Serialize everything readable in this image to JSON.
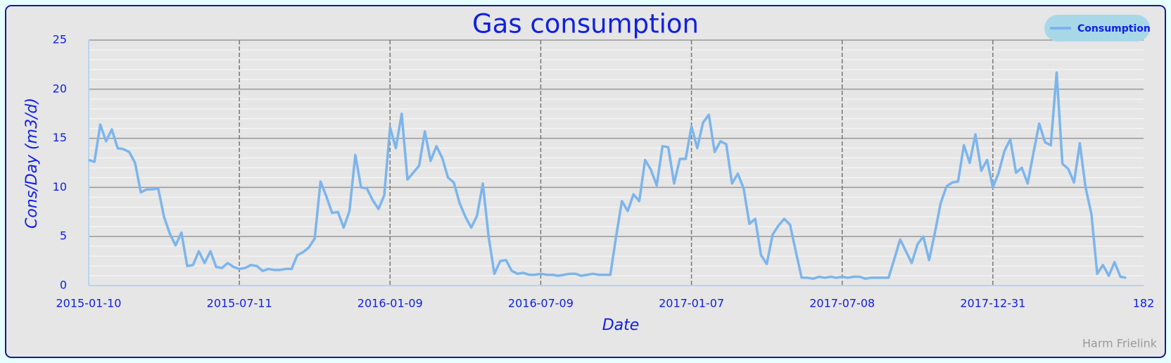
{
  "chart_data": {
    "type": "line",
    "title": "Gas consumption",
    "x_label": "Date",
    "y_label": "Cons/Day (m3/d)",
    "credit": "Harm Frielink",
    "categories": [
      "2015-01-10",
      null,
      null,
      null,
      null,
      null,
      null,
      null,
      null,
      null,
      null,
      null,
      null,
      null,
      null,
      null,
      null,
      null,
      null,
      null,
      null,
      null,
      null,
      null,
      null,
      null,
      "2015-07-11",
      null,
      null,
      null,
      null,
      null,
      null,
      null,
      null,
      null,
      null,
      null,
      null,
      null,
      null,
      null,
      null,
      null,
      null,
      null,
      null,
      null,
      null,
      null,
      null,
      null,
      "2016-01-09",
      null,
      null,
      null,
      null,
      null,
      null,
      null,
      null,
      null,
      null,
      null,
      null,
      null,
      null,
      null,
      null,
      null,
      null,
      null,
      null,
      null,
      null,
      null,
      null,
      null,
      "2016-07-09",
      null,
      null,
      null,
      null,
      null,
      null,
      null,
      null,
      null,
      null,
      null,
      null,
      null,
      null,
      null,
      null,
      null,
      null,
      null,
      null,
      null,
      null,
      null,
      null,
      null,
      "2017-01-07",
      null,
      null,
      null,
      null,
      null,
      null,
      null,
      null,
      null,
      null,
      null,
      null,
      null,
      null,
      null,
      null,
      null,
      null,
      null,
      null,
      null,
      null,
      null,
      null,
      null,
      "2017-07-08",
      null,
      null,
      null,
      null,
      null,
      null,
      null,
      null,
      null,
      null,
      null,
      null,
      null,
      null,
      null,
      null,
      null,
      null,
      null,
      null,
      null,
      null,
      null,
      null,
      null,
      "2017-12-31",
      null,
      null,
      null,
      null,
      null,
      null,
      null,
      null,
      null,
      null,
      null,
      null,
      null,
      null,
      null,
      null,
      null,
      null,
      null,
      null,
      null,
      null,
      null,
      null,
      null,
      "182"
    ],
    "series": [
      {
        "name": "Consumption",
        "color": "#7cb5ec",
        "values": [
          12.8,
          12.6,
          16.4,
          14.7,
          15.9,
          14.0,
          13.9,
          13.6,
          12.5,
          9.5,
          9.8,
          9.8,
          9.9,
          7.0,
          5.3,
          4.1,
          5.4,
          2.0,
          2.1,
          3.5,
          2.3,
          3.5,
          1.9,
          1.8,
          2.3,
          1.9,
          1.7,
          1.8,
          2.1,
          2.0,
          1.5,
          1.7,
          1.6,
          1.6,
          1.7,
          1.7,
          3.1,
          3.4,
          3.9,
          4.8,
          10.6,
          9.1,
          7.4,
          7.5,
          5.9,
          7.6,
          13.3,
          10.0,
          9.9,
          8.7,
          7.8,
          9.2,
          16.1,
          14.0,
          17.5,
          10.8,
          11.5,
          12.2,
          15.7,
          12.7,
          14.2,
          13.0,
          11.0,
          10.5,
          8.4,
          7.0,
          5.9,
          7.1,
          10.4,
          5.0,
          1.2,
          2.5,
          2.6,
          1.5,
          1.2,
          1.3,
          1.1,
          1.1,
          1.2,
          1.1,
          1.1,
          1.0,
          1.1,
          1.2,
          1.2,
          1.0,
          1.1,
          1.2,
          1.1,
          1.1,
          1.1,
          5.0,
          8.6,
          7.6,
          9.3,
          8.6,
          12.8,
          11.8,
          10.2,
          14.2,
          14.1,
          10.4,
          12.9,
          12.9,
          16.2,
          14.0,
          16.6,
          17.4,
          13.6,
          14.7,
          14.4,
          10.4,
          11.4,
          9.9,
          6.3,
          6.8,
          3.1,
          2.2,
          5.2,
          6.1,
          6.8,
          6.2,
          3.5,
          0.8,
          0.8,
          0.7,
          0.9,
          0.8,
          0.9,
          0.8,
          0.9,
          0.8,
          0.9,
          0.9,
          0.7,
          0.8,
          0.8,
          0.8,
          0.8,
          2.7,
          4.7,
          3.5,
          2.3,
          4.2,
          5.0,
          2.6,
          5.4,
          8.4,
          10.1,
          10.5,
          10.6,
          14.3,
          12.5,
          15.4,
          11.7,
          12.8,
          10.0,
          11.5,
          13.7,
          14.9,
          11.5,
          12.0,
          10.4,
          13.5,
          16.5,
          14.6,
          14.3,
          21.7,
          12.4,
          11.9,
          10.5,
          14.5,
          10.0,
          7.3,
          1.2,
          2.1,
          1.0,
          2.4,
          0.9,
          0.8,
          null,
          null,
          null
        ]
      }
    ],
    "ylim": [
      0,
      25
    ],
    "yticks": [
      0,
      5,
      10,
      15,
      20,
      25
    ],
    "grid": true
  }
}
